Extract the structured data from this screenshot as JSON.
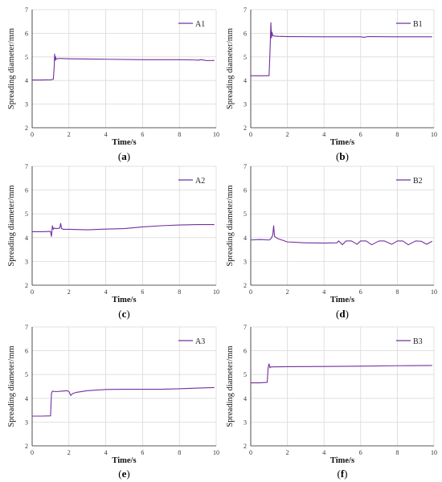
{
  "figure": {
    "line_color": "#7030a0"
  },
  "chart_data": [
    {
      "type": "line",
      "panel_label": "a",
      "legend": "A1",
      "xlabel": "Time/s",
      "ylabel": "Spreading diameter/mm",
      "xlim": [
        0,
        10
      ],
      "ylim": [
        2,
        7
      ],
      "xticks": [
        0,
        2,
        4,
        6,
        8,
        10
      ],
      "yticks": [
        2,
        3,
        4,
        5,
        6,
        7
      ],
      "grid": true,
      "legend_position": "top-right",
      "series": [
        {
          "x": [
            0,
            0.5,
            1.0,
            1.15,
            1.2,
            1.22,
            1.25,
            1.28,
            1.3,
            1.4,
            1.6,
            2,
            4,
            6,
            8,
            8.8,
            9.0,
            9.2,
            9.5,
            9.9
          ],
          "y": [
            4.02,
            4.02,
            4.03,
            4.05,
            4.6,
            5.12,
            4.85,
            5.0,
            4.9,
            4.93,
            4.93,
            4.92,
            4.9,
            4.88,
            4.88,
            4.87,
            4.86,
            4.88,
            4.84,
            4.85
          ]
        }
      ]
    },
    {
      "type": "line",
      "panel_label": "b",
      "legend": "B1",
      "xlabel": "Time/s",
      "ylabel": "Spreading diameter/mm",
      "xlim": [
        0,
        10
      ],
      "ylim": [
        2,
        7
      ],
      "xticks": [
        0,
        2,
        4,
        6,
        8,
        10
      ],
      "yticks": [
        2,
        3,
        4,
        5,
        6,
        7
      ],
      "grid": true,
      "legend_position": "top-right",
      "series": [
        {
          "x": [
            0,
            0.5,
            1.0,
            1.05,
            1.1,
            1.13,
            1.16,
            1.2,
            1.3,
            1.5,
            2,
            4,
            6,
            6.2,
            6.4,
            8,
            9.9
          ],
          "y": [
            4.2,
            4.2,
            4.2,
            5.2,
            6.45,
            5.8,
            6.05,
            5.9,
            5.88,
            5.87,
            5.86,
            5.85,
            5.85,
            5.83,
            5.86,
            5.85,
            5.85
          ]
        }
      ]
    },
    {
      "type": "line",
      "panel_label": "c",
      "legend": "A2",
      "xlabel": "Time/s",
      "ylabel": "Spreading diameter/mm",
      "xlim": [
        0,
        10
      ],
      "ylim": [
        2,
        7
      ],
      "xticks": [
        0,
        2,
        4,
        6,
        8,
        10
      ],
      "yticks": [
        2,
        3,
        4,
        5,
        6,
        7
      ],
      "grid": true,
      "legend_position": "top-right",
      "series": [
        {
          "x": [
            0,
            0.5,
            1.0,
            1.05,
            1.1,
            1.15,
            1.2,
            1.3,
            1.5,
            1.55,
            1.6,
            1.7,
            2,
            3,
            4,
            5,
            6,
            7,
            8,
            9,
            9.9
          ],
          "y": [
            4.25,
            4.25,
            4.26,
            4.05,
            4.5,
            4.35,
            4.4,
            4.38,
            4.4,
            4.6,
            4.38,
            4.35,
            4.35,
            4.33,
            4.36,
            4.38,
            4.45,
            4.5,
            4.53,
            4.55,
            4.55
          ]
        }
      ]
    },
    {
      "type": "line",
      "panel_label": "d",
      "legend": "B2",
      "xlabel": "Time/s",
      "ylabel": "Spreading diameter/mm",
      "xlim": [
        0,
        10
      ],
      "ylim": [
        2,
        7
      ],
      "xticks": [
        0,
        2,
        4,
        6,
        8,
        10
      ],
      "yticks": [
        2,
        3,
        4,
        5,
        6,
        7
      ],
      "grid": true,
      "legend_position": "top-right",
      "series": [
        {
          "x": [
            0,
            0.5,
            1.0,
            1.1,
            1.2,
            1.25,
            1.3,
            1.4,
            1.5,
            1.7,
            2.0,
            2.5,
            3.0,
            4.0,
            4.7,
            4.8,
            5.0,
            5.2,
            5.5,
            5.8,
            6.0,
            6.3,
            6.6,
            7.0,
            7.3,
            7.7,
            8.0,
            8.3,
            8.6,
            9.0,
            9.3,
            9.6,
            9.9
          ],
          "y": [
            3.9,
            3.92,
            3.9,
            3.95,
            4.1,
            4.5,
            4.05,
            4.0,
            3.95,
            3.9,
            3.82,
            3.8,
            3.78,
            3.77,
            3.78,
            3.86,
            3.7,
            3.86,
            3.86,
            3.72,
            3.86,
            3.86,
            3.7,
            3.86,
            3.86,
            3.72,
            3.86,
            3.86,
            3.7,
            3.86,
            3.85,
            3.72,
            3.85
          ]
        }
      ]
    },
    {
      "type": "line",
      "panel_label": "e",
      "legend": "A3",
      "xlabel": "Time/s",
      "ylabel": "Spreading diameter/mm",
      "xlim": [
        0,
        10
      ],
      "ylim": [
        2,
        7
      ],
      "xticks": [
        0,
        2,
        4,
        6,
        8,
        10
      ],
      "yticks": [
        2,
        3,
        4,
        5,
        6,
        7
      ],
      "grid": true,
      "legend_position": "top-right",
      "series": [
        {
          "x": [
            0,
            0.5,
            1.0,
            1.05,
            1.1,
            1.3,
            1.6,
            1.9,
            2.0,
            2.1,
            2.2,
            2.4,
            3,
            4,
            5,
            6,
            7,
            8,
            9,
            9.9
          ],
          "y": [
            3.25,
            3.25,
            3.26,
            4.2,
            4.3,
            4.28,
            4.3,
            4.32,
            4.28,
            4.12,
            4.2,
            4.25,
            4.32,
            4.37,
            4.38,
            4.38,
            4.38,
            4.4,
            4.43,
            4.45
          ]
        }
      ]
    },
    {
      "type": "line",
      "panel_label": "f",
      "legend": "B3",
      "xlabel": "Time/s",
      "ylabel": "Spreading diameter/mm",
      "xlim": [
        0,
        10
      ],
      "ylim": [
        2,
        7
      ],
      "xticks": [
        0,
        2,
        4,
        6,
        8,
        10
      ],
      "yticks": [
        2,
        3,
        4,
        5,
        6,
        7
      ],
      "grid": true,
      "legend_position": "top-right",
      "series": [
        {
          "x": [
            0,
            0.5,
            0.9,
            0.95,
            1.0,
            1.05,
            1.1,
            1.3,
            2,
            4,
            6,
            8,
            9.9
          ],
          "y": [
            4.65,
            4.65,
            4.67,
            5.3,
            5.45,
            5.28,
            5.32,
            5.32,
            5.33,
            5.34,
            5.35,
            5.37,
            5.38
          ]
        }
      ]
    }
  ]
}
